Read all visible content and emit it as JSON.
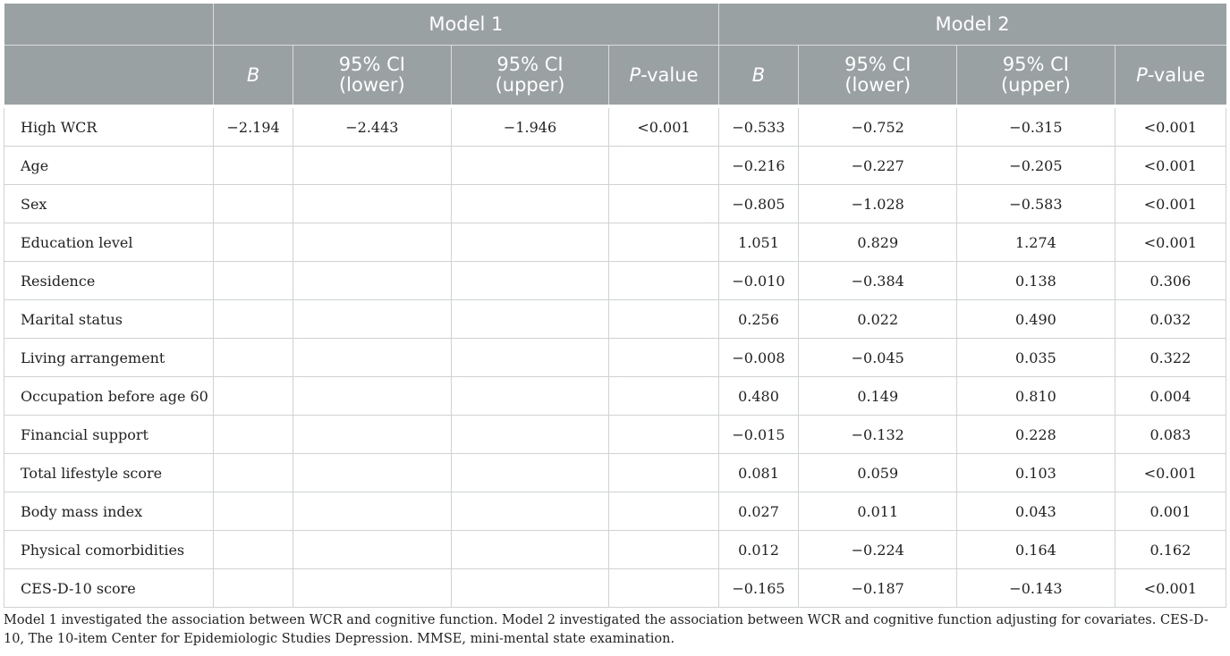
{
  "header": {
    "model1": "Model 1",
    "model2": "Model 2",
    "cols": {
      "b": "B",
      "ci_lower_a": "95% CI",
      "ci_lower_b": "(lower)",
      "ci_upper_a": "95% CI",
      "ci_upper_b": "(upper)",
      "p_italic": "P",
      "p_rest": "-value"
    }
  },
  "rows": [
    {
      "label": "High WCR",
      "m1": [
        "−2.194",
        "−2.443",
        "−1.946",
        "<0.001"
      ],
      "m2": [
        "−0.533",
        "−0.752",
        "−0.315",
        "<0.001"
      ]
    },
    {
      "label": "Age",
      "m1": [
        "",
        "",
        "",
        ""
      ],
      "m2": [
        "−0.216",
        "−0.227",
        "−0.205",
        "<0.001"
      ]
    },
    {
      "label": "Sex",
      "m1": [
        "",
        "",
        "",
        ""
      ],
      "m2": [
        "−0.805",
        "−1.028",
        "−0.583",
        "<0.001"
      ]
    },
    {
      "label": "Education level",
      "m1": [
        "",
        "",
        "",
        ""
      ],
      "m2": [
        "1.051",
        "0.829",
        "1.274",
        "<0.001"
      ]
    },
    {
      "label": "Residence",
      "m1": [
        "",
        "",
        "",
        ""
      ],
      "m2": [
        "−0.010",
        "−0.384",
        "0.138",
        "0.306"
      ]
    },
    {
      "label": "Marital status",
      "m1": [
        "",
        "",
        "",
        ""
      ],
      "m2": [
        "0.256",
        "0.022",
        "0.490",
        "0.032"
      ]
    },
    {
      "label": "Living arrangement",
      "m1": [
        "",
        "",
        "",
        ""
      ],
      "m2": [
        "−0.008",
        "−0.045",
        "0.035",
        "0.322"
      ]
    },
    {
      "label": "Occupation before age 60",
      "m1": [
        "",
        "",
        "",
        ""
      ],
      "m2": [
        "0.480",
        "0.149",
        "0.810",
        "0.004"
      ]
    },
    {
      "label": "Financial support",
      "m1": [
        "",
        "",
        "",
        ""
      ],
      "m2": [
        "−0.015",
        "−0.132",
        "0.228",
        "0.083"
      ]
    },
    {
      "label": "Total lifestyle score",
      "m1": [
        "",
        "",
        "",
        ""
      ],
      "m2": [
        "0.081",
        "0.059",
        "0.103",
        "<0.001"
      ]
    },
    {
      "label": "Body mass index",
      "m1": [
        "",
        "",
        "",
        ""
      ],
      "m2": [
        "0.027",
        "0.011",
        "0.043",
        "0.001"
      ]
    },
    {
      "label": "Physical comorbidities",
      "m1": [
        "",
        "",
        "",
        ""
      ],
      "m2": [
        "0.012",
        "−0.224",
        "0.164",
        "0.162"
      ]
    },
    {
      "label": "CES-D-10 score",
      "m1": [
        "",
        "",
        "",
        ""
      ],
      "m2": [
        "−0.165",
        "−0.187",
        "−0.143",
        "<0.001"
      ]
    }
  ],
  "footnote": "Model 1 investigated the association between WCR and cognitive function. Model 2 investigated the association between WCR and cognitive function adjusting for covariates. CES-D-10, The 10-item Center for Epidemiologic Studies Depression. MMSE, mini-mental state examination."
}
